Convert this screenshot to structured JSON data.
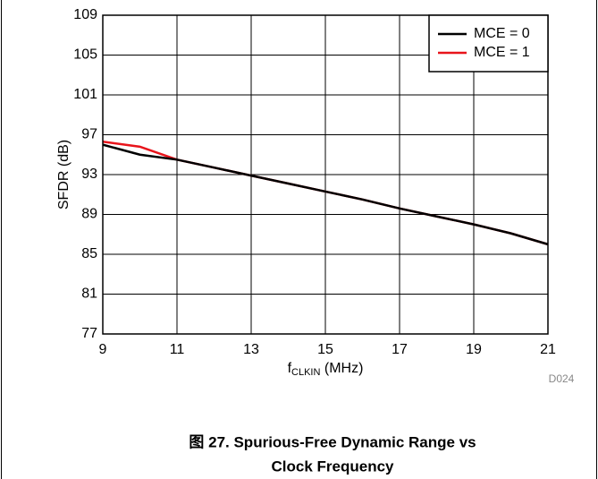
{
  "chart_data": {
    "type": "line",
    "title": [
      "图 27. Spurious-Free Dynamic Range vs",
      "Clock Frequency"
    ],
    "xlabel": {
      "main": "f",
      "sub": "CLKIN",
      "unit": " (MHz)"
    },
    "ylabel": "SFDR (dB)",
    "annotation": "D024",
    "x": [
      9,
      10,
      11,
      12,
      13,
      14,
      15,
      16,
      17,
      18,
      19,
      20,
      21
    ],
    "series": [
      {
        "name": "MCE = 0",
        "color": "#000000",
        "values": [
          96.0,
          95.0,
          94.5,
          93.7,
          92.9,
          92.1,
          91.3,
          90.5,
          89.6,
          88.8,
          88.0,
          87.1,
          86.0
        ]
      },
      {
        "name": "MCE = 1",
        "color": "#e8141b",
        "values": [
          96.3,
          95.8,
          94.5,
          93.7,
          92.9,
          92.1,
          91.3,
          90.5,
          89.6,
          88.8,
          88.0,
          87.1,
          86.0
        ]
      }
    ],
    "xlim": [
      9,
      21
    ],
    "xticks": [
      9,
      11,
      13,
      15,
      17,
      19,
      21
    ],
    "ylim": [
      77,
      109
    ],
    "yticks": [
      77,
      81,
      85,
      89,
      93,
      97,
      101,
      105,
      109
    ],
    "grid": true,
    "legend": "upper right"
  }
}
